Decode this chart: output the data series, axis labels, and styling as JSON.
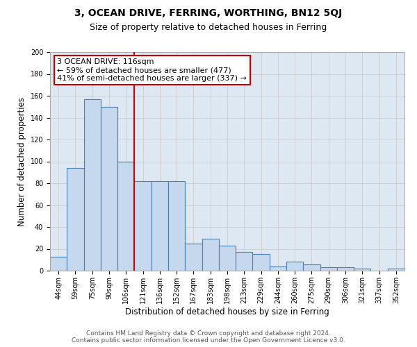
{
  "title": "3, OCEAN DRIVE, FERRING, WORTHING, BN12 5QJ",
  "subtitle": "Size of property relative to detached houses in Ferring",
  "xlabel": "Distribution of detached houses by size in Ferring",
  "ylabel": "Number of detached properties",
  "categories": [
    "44sqm",
    "59sqm",
    "75sqm",
    "90sqm",
    "106sqm",
    "121sqm",
    "136sqm",
    "152sqm",
    "167sqm",
    "183sqm",
    "198sqm",
    "213sqm",
    "229sqm",
    "244sqm",
    "260sqm",
    "275sqm",
    "290sqm",
    "306sqm",
    "321sqm",
    "337sqm",
    "352sqm"
  ],
  "values": [
    13,
    94,
    157,
    150,
    100,
    82,
    82,
    82,
    25,
    29,
    23,
    17,
    15,
    4,
    8,
    6,
    3,
    3,
    2,
    0,
    2
  ],
  "bar_color": "#c5d8ed",
  "bar_edge_color": "#4a7fb5",
  "bar_linewidth": 0.8,
  "redline_index": 5,
  "annotation_line1": "3 OCEAN DRIVE: 116sqm",
  "annotation_line2": "← 59% of detached houses are smaller (477)",
  "annotation_line3": "41% of semi-detached houses are larger (337) →",
  "annotation_box_color": "#ffffff",
  "annotation_box_edge": "#cc0000",
  "redline_color": "#cc0000",
  "ylim": [
    0,
    200
  ],
  "yticks": [
    0,
    20,
    40,
    60,
    80,
    100,
    120,
    140,
    160,
    180,
    200
  ],
  "grid_color": "#cccccc",
  "background_color": "#dde8f3",
  "footer_line1": "Contains HM Land Registry data © Crown copyright and database right 2024.",
  "footer_line2": "Contains public sector information licensed under the Open Government Licence v3.0.",
  "title_fontsize": 10,
  "subtitle_fontsize": 9,
  "axis_label_fontsize": 8.5,
  "tick_fontsize": 7,
  "annotation_fontsize": 8,
  "footer_fontsize": 6.5
}
